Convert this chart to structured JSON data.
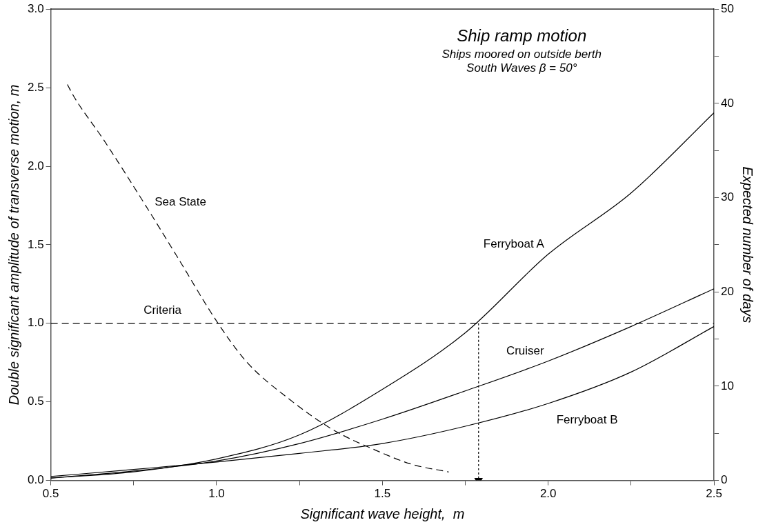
{
  "chart_data": {
    "type": "line",
    "title": "Ship ramp motion",
    "subtitle": "Ships moored on outside berth\nSouth Waves β = 50°",
    "xlabel": "Significant wave height,  m",
    "ylabel": "Double significant amplitude of transverse motion, m",
    "y2label": "Expected number of days",
    "x": [
      0.5,
      0.75,
      1.0,
      1.25,
      1.5,
      1.75,
      2.0,
      2.25,
      2.5
    ],
    "series": [
      {
        "name": "Ferryboat A",
        "color": "#000000",
        "values": [
          0.015,
          0.055,
          0.137,
          0.29,
          0.58,
          0.94,
          1.44,
          1.83,
          2.34
        ]
      },
      {
        "name": "Cruiser",
        "color": "#000000",
        "values": [
          0.015,
          0.06,
          0.124,
          0.235,
          0.39,
          0.57,
          0.76,
          0.98,
          1.22
        ]
      },
      {
        "name": "Ferryboat B",
        "color": "#000000",
        "values": [
          0.025,
          0.07,
          0.117,
          0.172,
          0.235,
          0.345,
          0.49,
          0.69,
          0.98
        ]
      },
      {
        "name": "Sea State",
        "color": "#000000",
        "axis": "y2",
        "line_style": "dashed",
        "x": [
          0.55,
          0.57,
          0.66,
          0.78,
          0.88,
          1.0,
          1.09,
          1.22,
          1.35,
          1.48,
          1.59,
          1.7
        ],
        "values": [
          42,
          40.7,
          36.1,
          29.5,
          23.8,
          16.9,
          12.6,
          8.6,
          5.4,
          3.2,
          1.7,
          0.9
        ]
      },
      {
        "color": "#000000",
        "line_style": "dotted",
        "marker": "triangle",
        "x": [
          1.79,
          1.79
        ],
        "values": [
          1.0,
          0.0
        ]
      }
    ],
    "ref_lines": [
      {
        "axis": "y",
        "value": 1.0,
        "label": "Criteria",
        "color": "#000000",
        "line_style": "dashed"
      }
    ],
    "xlim": [
      0.5,
      2.5
    ],
    "xticks": [
      {
        "value": 0.5,
        "label": "0.5"
      },
      {
        "value": 0.75,
        "label": null
      },
      {
        "value": 1.0,
        "label": "1.0"
      },
      {
        "value": 1.25,
        "label": null
      },
      {
        "value": 1.5,
        "label": "1.5"
      },
      {
        "value": 1.75,
        "label": null
      },
      {
        "value": 2.0,
        "label": "2.0"
      },
      {
        "value": 2.25,
        "label": null
      },
      {
        "value": 2.5,
        "label": "2.5"
      }
    ],
    "ylim": [
      0,
      3
    ],
    "yticks": [
      {
        "value": 0,
        "label": "0.0"
      },
      {
        "value": 0.5,
        "label": "0.5"
      },
      {
        "value": 1.0,
        "label": "1.0"
      },
      {
        "value": 1.5,
        "label": "1.5"
      },
      {
        "value": 2.0,
        "label": "2.0"
      },
      {
        "value": 2.5,
        "label": "2.5"
      },
      {
        "value": 3.0,
        "label": "3.0"
      }
    ],
    "y2lim": [
      0,
      50
    ],
    "y2ticks": [
      0,
      {
        "value": 5,
        "label": null
      },
      10,
      {
        "value": 15,
        "label": null
      },
      20,
      {
        "value": 25,
        "label": null
      },
      30,
      {
        "value": 35,
        "label": null
      },
      40,
      {
        "value": 45,
        "label": null
      },
      50
    ],
    "grid": false,
    "legend": false,
    "line_style": "solid",
    "marker": "none"
  }
}
